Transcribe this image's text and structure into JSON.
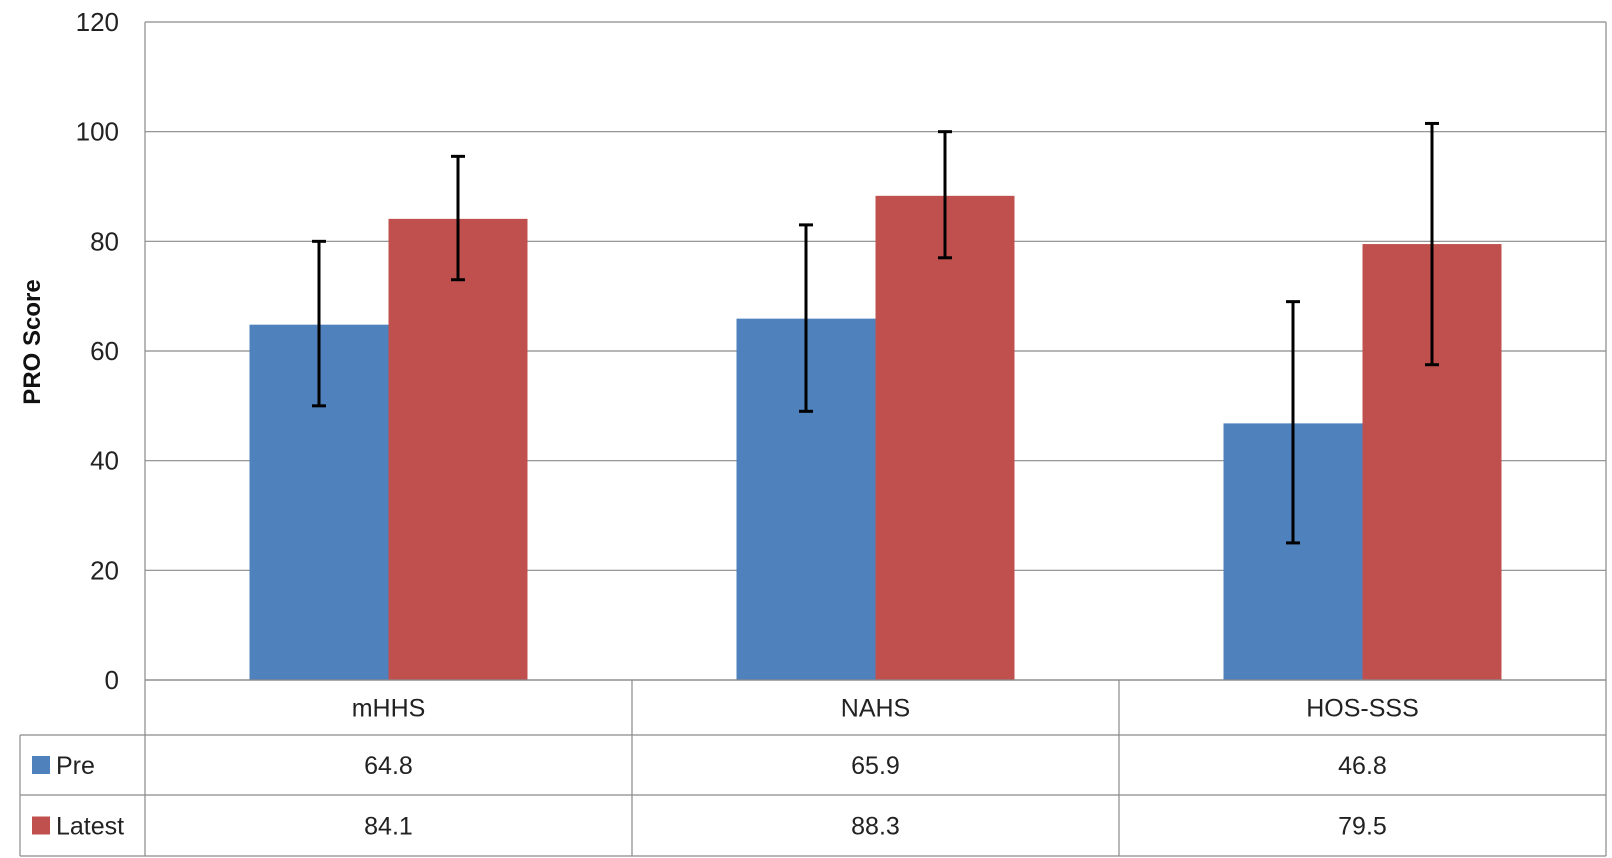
{
  "chart_data": {
    "type": "bar",
    "title": "",
    "xlabel": "",
    "ylabel": "PRO Score",
    "ylim": [
      0,
      120
    ],
    "yticks": [
      0,
      20,
      40,
      60,
      80,
      100,
      120
    ],
    "grid": true,
    "legend": "data table below chart",
    "categories": [
      "mHHS",
      "NAHS",
      "HOS-SSS"
    ],
    "series": [
      {
        "name": "Pre",
        "color": "#4F81BD",
        "values": [
          64.8,
          65.9,
          46.8
        ],
        "error_low": [
          50,
          49,
          25
        ],
        "error_high": [
          80,
          83,
          69
        ],
        "labels": [
          "64.8",
          "65.9",
          "46.8"
        ]
      },
      {
        "name": "Latest",
        "color": "#C0504D",
        "values": [
          84.1,
          88.3,
          79.5
        ],
        "error_low": [
          73,
          77,
          57.5
        ],
        "error_high": [
          95.5,
          100,
          101.5
        ],
        "labels": [
          "84.1",
          "88.3",
          "79.5"
        ]
      }
    ]
  }
}
